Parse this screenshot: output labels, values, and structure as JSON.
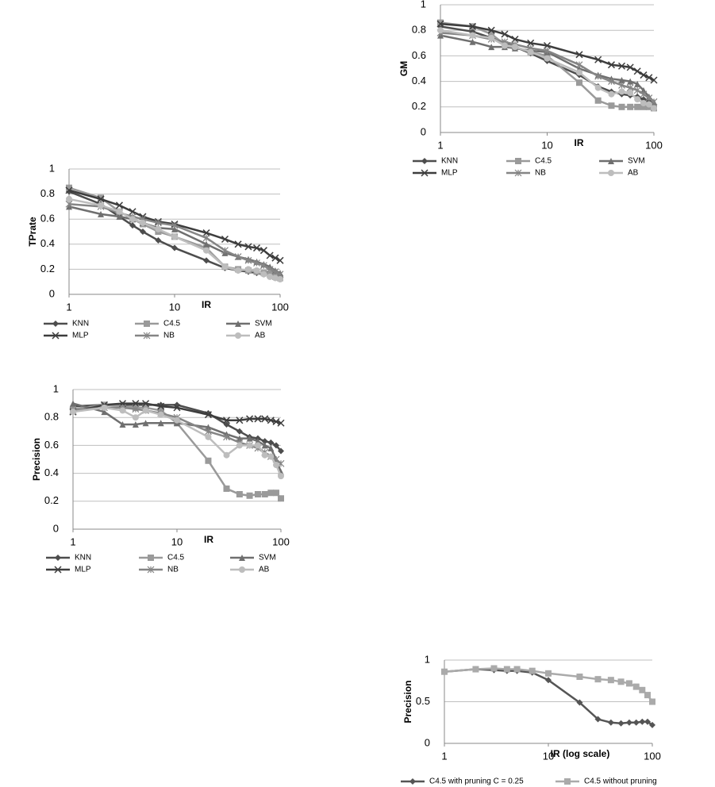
{
  "chart_data": [
    {
      "type": "line",
      "y_label": "TPrate",
      "x_label": "IR",
      "log_x": true,
      "grid": true,
      "x": [
        1,
        2,
        3,
        4,
        5,
        7,
        10,
        20,
        30,
        40,
        50,
        60,
        70,
        80,
        90,
        100
      ],
      "xlim": [
        1,
        100
      ],
      "xticks": [
        1,
        10,
        100
      ],
      "ylim": [
        0,
        1
      ],
      "yticks": [
        0,
        0.2,
        0.4,
        0.6,
        0.8,
        1
      ],
      "series": [
        {
          "name": "KNN",
          "color": "#4d4d4d",
          "marker": "diamond",
          "values": [
            0.82,
            0.72,
            0.62,
            0.55,
            0.5,
            0.43,
            0.37,
            0.27,
            0.21,
            0.19,
            0.18,
            0.17,
            0.16,
            0.15,
            0.14,
            0.13
          ]
        },
        {
          "name": "C4.5",
          "color": "#9a9a9a",
          "marker": "square",
          "values": [
            0.85,
            0.77,
            0.66,
            0.6,
            0.56,
            0.5,
            0.46,
            0.37,
            0.22,
            0.2,
            0.19,
            0.18,
            0.17,
            0.16,
            0.14,
            0.13
          ]
        },
        {
          "name": "SVM",
          "color": "#6f6f6f",
          "marker": "triangle",
          "values": [
            0.7,
            0.64,
            0.62,
            0.6,
            0.57,
            0.53,
            0.52,
            0.4,
            0.33,
            0.3,
            0.28,
            0.26,
            0.24,
            0.22,
            0.19,
            0.17
          ]
        },
        {
          "name": "MLP",
          "color": "#3d3d3d",
          "marker": "x",
          "values": [
            0.83,
            0.76,
            0.71,
            0.66,
            0.62,
            0.58,
            0.56,
            0.49,
            0.44,
            0.4,
            0.38,
            0.37,
            0.35,
            0.31,
            0.29,
            0.27
          ]
        },
        {
          "name": "NB",
          "color": "#858585",
          "marker": "star",
          "values": [
            0.72,
            0.7,
            0.65,
            0.62,
            0.6,
            0.57,
            0.55,
            0.45,
            0.35,
            0.3,
            0.27,
            0.25,
            0.23,
            0.2,
            0.18,
            0.16
          ]
        },
        {
          "name": "AB",
          "color": "#bdbdbd",
          "marker": "circle",
          "values": [
            0.76,
            0.71,
            0.66,
            0.6,
            0.57,
            0.52,
            0.46,
            0.35,
            0.22,
            0.19,
            0.2,
            0.19,
            0.16,
            0.14,
            0.13,
            0.12
          ]
        }
      ]
    },
    {
      "type": "line",
      "y_label": "Precision",
      "x_label": "IR",
      "log_x": true,
      "grid": true,
      "x": [
        1,
        2,
        3,
        4,
        5,
        7,
        10,
        20,
        30,
        40,
        50,
        60,
        70,
        80,
        90,
        100
      ],
      "xlim": [
        1,
        100
      ],
      "xticks": [
        1,
        10,
        100
      ],
      "ylim": [
        0,
        1
      ],
      "yticks": [
        0,
        0.2,
        0.4,
        0.6,
        0.8,
        1
      ],
      "series": [
        {
          "name": "KNN",
          "color": "#4d4d4d",
          "marker": "diamond",
          "values": [
            0.88,
            0.89,
            0.89,
            0.89,
            0.89,
            0.89,
            0.89,
            0.83,
            0.75,
            0.7,
            0.66,
            0.65,
            0.63,
            0.62,
            0.6,
            0.56
          ]
        },
        {
          "name": "C4.5",
          "color": "#9a9a9a",
          "marker": "square",
          "values": [
            0.86,
            0.89,
            0.88,
            0.87,
            0.87,
            0.85,
            0.76,
            0.49,
            0.29,
            0.25,
            0.24,
            0.25,
            0.25,
            0.26,
            0.26,
            0.22
          ]
        },
        {
          "name": "SVM",
          "color": "#6f6f6f",
          "marker": "triangle",
          "values": [
            0.9,
            0.84,
            0.75,
            0.75,
            0.76,
            0.76,
            0.76,
            0.73,
            0.68,
            0.65,
            0.65,
            0.63,
            0.6,
            0.58,
            0.5,
            0.41
          ]
        },
        {
          "name": "MLP",
          "color": "#3d3d3d",
          "marker": "x",
          "values": [
            0.84,
            0.89,
            0.9,
            0.9,
            0.9,
            0.88,
            0.87,
            0.82,
            0.78,
            0.78,
            0.79,
            0.79,
            0.79,
            0.78,
            0.77,
            0.76
          ]
        },
        {
          "name": "NB",
          "color": "#858585",
          "marker": "star",
          "values": [
            0.85,
            0.87,
            0.87,
            0.86,
            0.85,
            0.83,
            0.8,
            0.7,
            0.66,
            0.62,
            0.6,
            0.58,
            0.55,
            0.52,
            0.5,
            0.47
          ]
        },
        {
          "name": "AB",
          "color": "#bdbdbd",
          "marker": "circle",
          "values": [
            0.84,
            0.87,
            0.85,
            0.8,
            0.85,
            0.82,
            0.78,
            0.66,
            0.53,
            0.6,
            0.6,
            0.6,
            0.53,
            0.52,
            0.46,
            0.38
          ]
        }
      ]
    },
    {
      "type": "line",
      "y_label": "GM",
      "x_label": "IR",
      "log_x": true,
      "grid": true,
      "x": [
        1,
        2,
        3,
        4,
        5,
        7,
        10,
        20,
        30,
        40,
        50,
        60,
        70,
        80,
        90,
        100
      ],
      "xlim": [
        1,
        100
      ],
      "xticks": [
        1,
        10,
        100
      ],
      "ylim": [
        0,
        1
      ],
      "yticks": [
        0,
        0.2,
        0.4,
        0.6,
        0.8,
        1
      ],
      "series": [
        {
          "name": "KNN",
          "color": "#4d4d4d",
          "marker": "diamond",
          "values": [
            0.83,
            0.79,
            0.74,
            0.7,
            0.67,
            0.62,
            0.56,
            0.45,
            0.36,
            0.32,
            0.3,
            0.29,
            0.28,
            0.26,
            0.24,
            0.22
          ]
        },
        {
          "name": "C4.5",
          "color": "#9a9a9a",
          "marker": "square",
          "values": [
            0.86,
            0.83,
            0.77,
            0.69,
            0.67,
            0.63,
            0.6,
            0.39,
            0.25,
            0.21,
            0.2,
            0.2,
            0.2,
            0.2,
            0.2,
            0.19
          ]
        },
        {
          "name": "SVM",
          "color": "#6f6f6f",
          "marker": "triangle",
          "values": [
            0.76,
            0.71,
            0.67,
            0.67,
            0.66,
            0.64,
            0.63,
            0.5,
            0.45,
            0.42,
            0.41,
            0.4,
            0.38,
            0.33,
            0.28,
            0.24
          ]
        },
        {
          "name": "MLP",
          "color": "#3d3d3d",
          "marker": "x",
          "values": [
            0.85,
            0.83,
            0.8,
            0.77,
            0.73,
            0.7,
            0.68,
            0.61,
            0.57,
            0.53,
            0.52,
            0.51,
            0.48,
            0.45,
            0.43,
            0.41
          ]
        },
        {
          "name": "NB",
          "color": "#858585",
          "marker": "star",
          "values": [
            0.78,
            0.76,
            0.73,
            0.71,
            0.69,
            0.66,
            0.64,
            0.53,
            0.44,
            0.4,
            0.37,
            0.35,
            0.33,
            0.3,
            0.27,
            0.24
          ]
        },
        {
          "name": "AB",
          "color": "#bdbdbd",
          "marker": "circle",
          "values": [
            0.8,
            0.76,
            0.74,
            0.68,
            0.67,
            0.63,
            0.58,
            0.47,
            0.35,
            0.3,
            0.32,
            0.31,
            0.26,
            0.23,
            0.22,
            0.19
          ]
        }
      ]
    },
    {
      "type": "line",
      "y_label": "Precision",
      "x_label": "IR (log scale)",
      "log_x": true,
      "grid": true,
      "x": [
        1,
        2,
        3,
        4,
        5,
        7,
        10,
        20,
        30,
        40,
        50,
        60,
        70,
        80,
        90,
        100
      ],
      "xlim": [
        1,
        100
      ],
      "xticks": [
        1,
        10,
        100
      ],
      "ylim": [
        0,
        1
      ],
      "yticks": [
        0,
        0.5,
        1
      ],
      "series": [
        {
          "name": "C4.5 with pruning C = 0.25",
          "color": "#555555",
          "marker": "diamond",
          "values": [
            0.86,
            0.89,
            0.88,
            0.87,
            0.87,
            0.85,
            0.76,
            0.49,
            0.29,
            0.25,
            0.24,
            0.25,
            0.25,
            0.26,
            0.26,
            0.22
          ]
        },
        {
          "name": "C4.5 without pruning",
          "color": "#aaaaaa",
          "marker": "square",
          "values": [
            0.86,
            0.89,
            0.9,
            0.89,
            0.89,
            0.87,
            0.84,
            0.8,
            0.77,
            0.76,
            0.74,
            0.72,
            0.68,
            0.64,
            0.58,
            0.5
          ]
        }
      ]
    }
  ]
}
